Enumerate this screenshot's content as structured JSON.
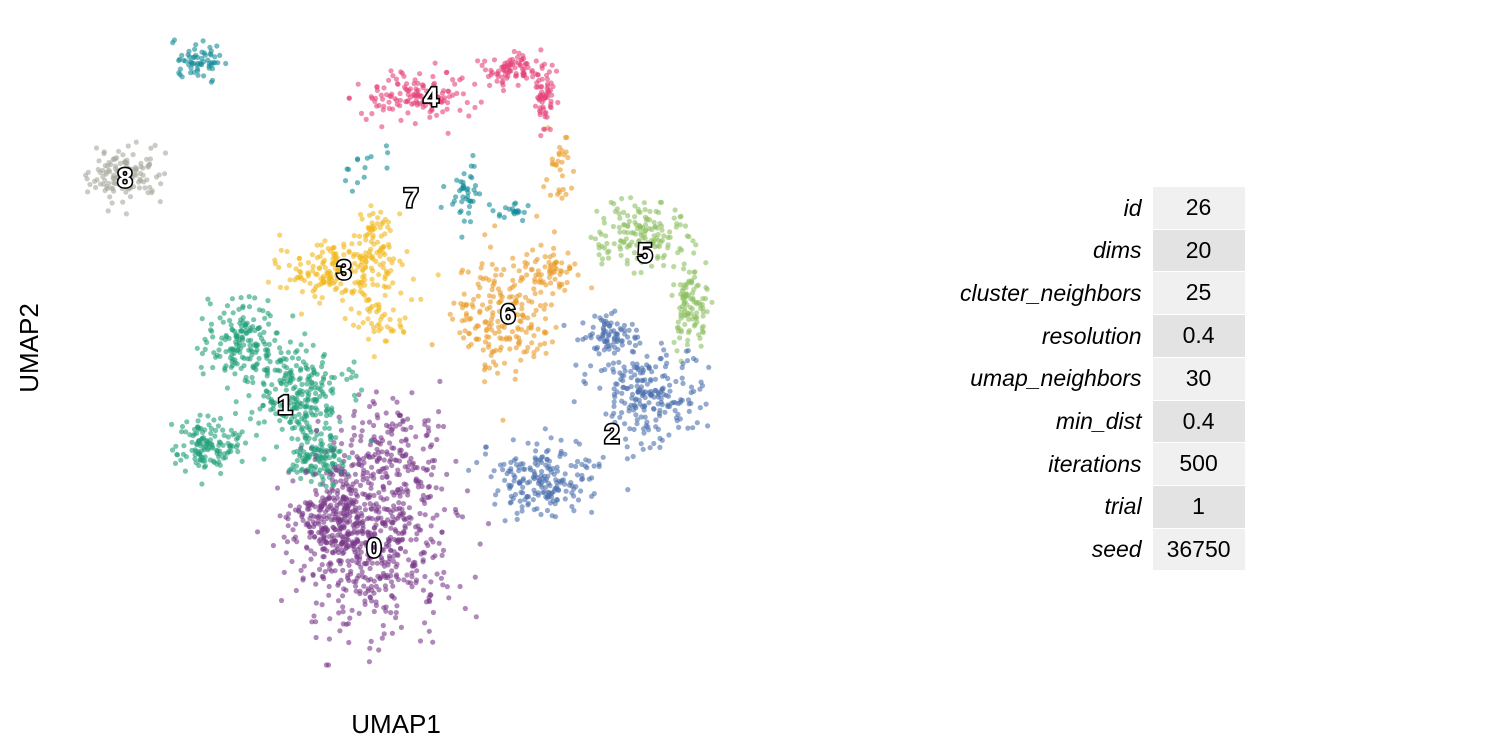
{
  "chart_data": {
    "type": "scatter",
    "xlabel": "UMAP1",
    "ylabel": "UMAP2",
    "grid": false,
    "legend": "none",
    "clusters": [
      {
        "name": "0",
        "color": "#7a3a8a",
        "label_at": [
          374,
          548
        ],
        "n": 900,
        "blobs": [
          [
            372,
            545,
            62,
            72,
            0.55
          ],
          [
            330,
            520,
            45,
            40,
            0.25
          ],
          [
            390,
            450,
            45,
            45,
            0.2
          ]
        ]
      },
      {
        "name": "1",
        "color": "#1f9e78",
        "label_at": [
          285,
          405
        ],
        "n": 650,
        "blobs": [
          [
            240,
            345,
            28,
            32,
            0.25
          ],
          [
            300,
            395,
            35,
            42,
            0.4
          ],
          [
            210,
            445,
            28,
            22,
            0.2
          ],
          [
            320,
            460,
            22,
            22,
            0.15
          ]
        ]
      },
      {
        "name": "2",
        "color": "#4b6fae",
        "label_at": [
          612,
          434
        ],
        "n": 500,
        "blobs": [
          [
            645,
            390,
            45,
            40,
            0.45
          ],
          [
            540,
            480,
            45,
            30,
            0.4
          ],
          [
            610,
            335,
            22,
            15,
            0.15
          ]
        ]
      },
      {
        "name": "3",
        "color": "#f2b71b",
        "label_at": [
          344,
          270
        ],
        "n": 300,
        "blobs": [
          [
            345,
            270,
            50,
            22,
            0.7
          ],
          [
            375,
            230,
            12,
            20,
            0.15
          ],
          [
            380,
            320,
            25,
            20,
            0.15
          ]
        ]
      },
      {
        "name": "4",
        "color": "#e4427a",
        "label_at": [
          431,
          97
        ],
        "n": 280,
        "blobs": [
          [
            420,
            95,
            48,
            22,
            0.5
          ],
          [
            515,
            70,
            25,
            12,
            0.3
          ],
          [
            545,
            100,
            8,
            25,
            0.2
          ]
        ]
      },
      {
        "name": "5",
        "color": "#8ec062",
        "label_at": [
          645,
          253
        ],
        "n": 260,
        "blobs": [
          [
            640,
            235,
            40,
            28,
            0.6
          ],
          [
            690,
            305,
            15,
            32,
            0.4
          ]
        ]
      },
      {
        "name": "6",
        "color": "#ea9b28",
        "label_at": [
          508,
          314
        ],
        "n": 300,
        "blobs": [
          [
            505,
            315,
            40,
            45,
            0.7
          ],
          [
            550,
            270,
            20,
            22,
            0.2
          ],
          [
            560,
            165,
            12,
            35,
            0.1
          ]
        ]
      },
      {
        "name": "7",
        "color": "#138c97",
        "label_at": [
          411,
          198
        ],
        "n": 140,
        "blobs": [
          [
            198,
            60,
            18,
            15,
            0.45
          ],
          [
            467,
            195,
            14,
            28,
            0.3
          ],
          [
            510,
            210,
            14,
            7,
            0.15
          ],
          [
            365,
            170,
            15,
            20,
            0.1
          ]
        ]
      },
      {
        "name": "8",
        "color": "#a9a99e",
        "label_at": [
          125,
          178
        ],
        "n": 140,
        "blobs": [
          [
            125,
            175,
            27,
            22,
            1.0
          ]
        ]
      }
    ]
  },
  "params": [
    {
      "name": "id",
      "value": "26"
    },
    {
      "name": "dims",
      "value": "20"
    },
    {
      "name": "cluster_neighbors",
      "value": "25"
    },
    {
      "name": "resolution",
      "value": "0.4"
    },
    {
      "name": "umap_neighbors",
      "value": "30"
    },
    {
      "name": "min_dist",
      "value": "0.4"
    },
    {
      "name": "iterations",
      "value": "500"
    },
    {
      "name": "trial",
      "value": "1"
    },
    {
      "name": "seed",
      "value": "36750"
    }
  ]
}
